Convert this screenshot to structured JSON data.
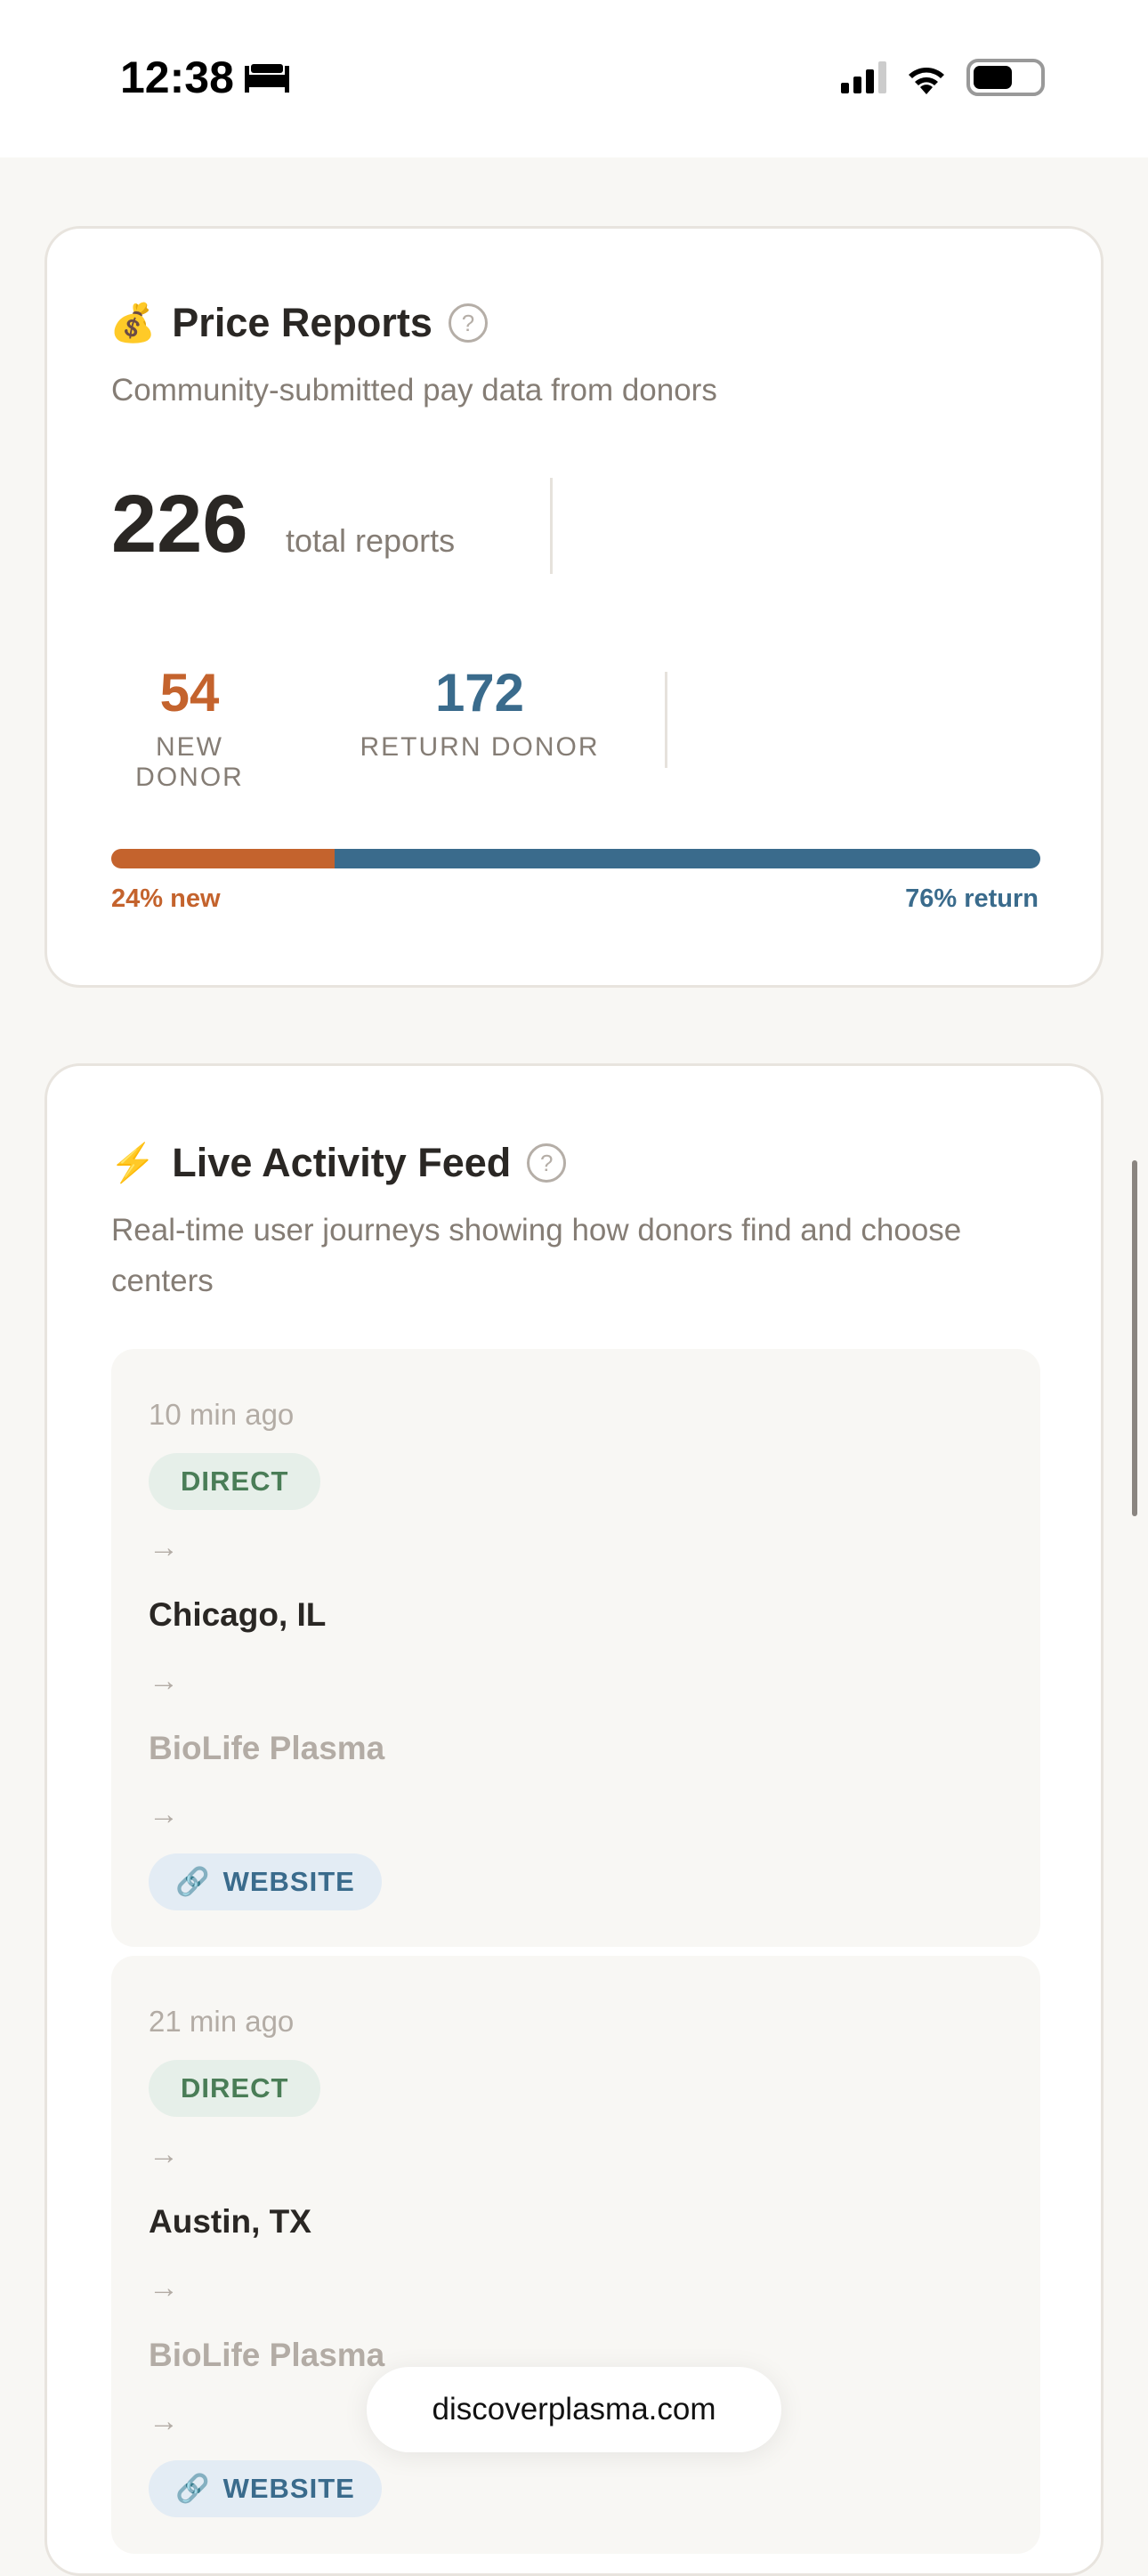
{
  "status_bar": {
    "time": "12:38",
    "icons": [
      "bed-icon",
      "signal-icon",
      "wifi-icon",
      "battery-icon"
    ]
  },
  "price_reports": {
    "icon": "money-bag-icon",
    "title": "Price Reports",
    "help": "?",
    "subtitle": "Community-submitted pay data from donors",
    "total": "226",
    "total_label": "total reports",
    "new_count": "54",
    "new_label": "NEW DONOR",
    "return_count": "172",
    "return_label": "RETURN DONOR",
    "new_percent": 24,
    "return_percent": 76,
    "new_pct_label": "24% new",
    "return_pct_label": "76% return",
    "colors": {
      "new": "#c4632d",
      "return": "#3a6b8c"
    }
  },
  "activity_feed": {
    "icon": "lightning-icon",
    "title": "Live Activity Feed",
    "help": "?",
    "subtitle": "Real-time user journeys showing how donors find and choose centers",
    "arrow": "→",
    "items": [
      {
        "time": "10 min ago",
        "source": "DIRECT",
        "location": "Chicago, IL",
        "center": "BioLife Plasma",
        "destination_icon": "link-icon",
        "destination": "WEBSITE"
      },
      {
        "time": "21 min ago",
        "source": "DIRECT",
        "location": "Austin, TX",
        "center": "BioLife Plasma",
        "destination_icon": "link-icon",
        "destination": "WEBSITE"
      }
    ]
  },
  "browser": {
    "url": "discoverplasma.com"
  }
}
